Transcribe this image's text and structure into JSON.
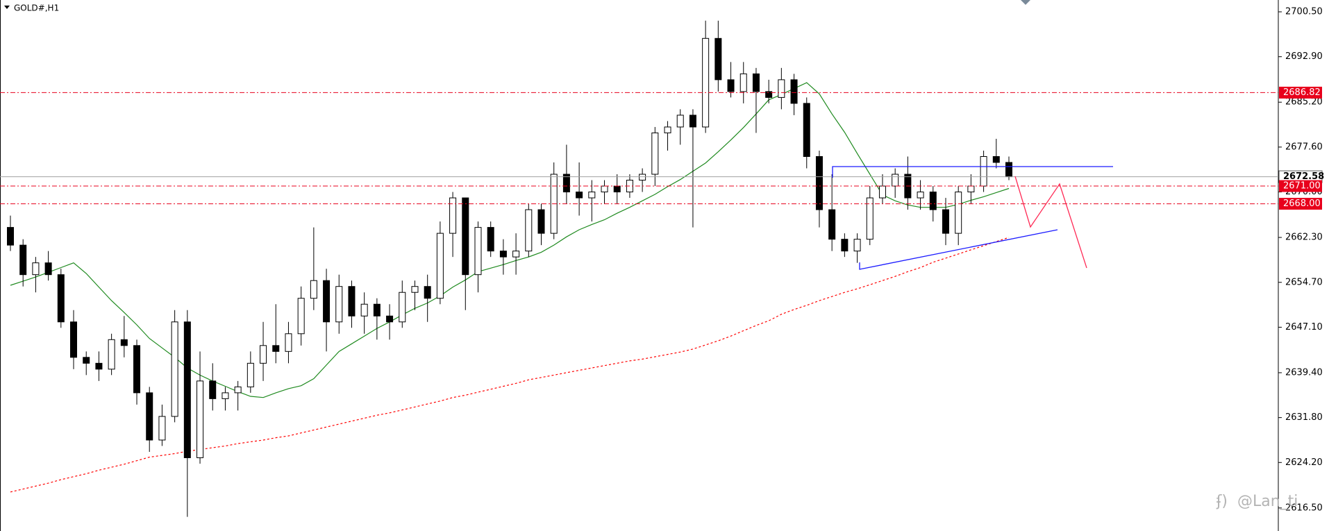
{
  "chart_data": {
    "type": "candlestick",
    "title": "GOLD#,H1",
    "ylim": [
      2612.6,
      2702.5
    ],
    "yticks": [
      {
        "value": 2700.5,
        "label": "2700.50"
      },
      {
        "value": 2692.9,
        "label": "2692.90"
      },
      {
        "value": 2685.2,
        "label": "2685.20"
      },
      {
        "value": 2677.6,
        "label": "2677.60"
      },
      {
        "value": 2670,
        "label": "2670.00"
      },
      {
        "value": 2662.3,
        "label": "2662.30"
      },
      {
        "value": 2654.7,
        "label": "2654.70"
      },
      {
        "value": 2647.1,
        "label": "2647.10"
      },
      {
        "value": 2639.4,
        "label": "2639.40"
      },
      {
        "value": 2631.8,
        "label": "2631.80"
      },
      {
        "value": 2624.2,
        "label": "2624.20"
      },
      {
        "value": 2616.5,
        "label": "2616.50"
      }
    ],
    "levels": [
      2686.82,
      {
        "value": 2671,
        "label": "2671.00"
      },
      {
        "value": 2668,
        "label": "2668.00"
      }
    ],
    "level_color": "#e8001c",
    "last": 2672.58,
    "open": [
      2664,
      2661,
      2656,
      2658,
      2656,
      2648,
      2642,
      2641,
      2640,
      2645,
      2644,
      2636,
      2628,
      2632,
      2648,
      2625,
      2638,
      2635,
      2636,
      2637,
      2641,
      2644,
      2643,
      2646,
      2652,
      2655,
      2648,
      2654,
      2649,
      2651,
      2649,
      2648,
      2653,
      2654,
      2652,
      2663,
      2669,
      2656,
      2664,
      2660,
      2659,
      2660,
      2667,
      2663,
      2673,
      2670,
      2669,
      2670,
      2671,
      2670,
      2672,
      2673,
      2680,
      2681,
      2683,
      2681,
      2696,
      2689,
      2687,
      2690,
      2687,
      2686,
      2689,
      2685,
      2676,
      2667,
      2662,
      2660,
      2662,
      2669,
      2671,
      2673,
      2669,
      2670,
      2667,
      2663,
      2670,
      2671,
      2676,
      2675
    ],
    "high": [
      2666,
      2662,
      2659,
      2660,
      2657,
      2650,
      2643,
      2643,
      2646,
      2649,
      2645,
      2637,
      2634,
      2650,
      2650,
      2643,
      2641,
      2637,
      2638,
      2643,
      2648,
      2651,
      2648,
      2654,
      2664,
      2657,
      2656,
      2655,
      2653,
      2652,
      2651,
      2655,
      2655,
      2656,
      2665,
      2670,
      2669,
      2665,
      2665,
      2662,
      2663,
      2668,
      2668,
      2675,
      2678,
      2675,
      2672,
      2672,
      2673,
      2673,
      2674,
      2681,
      2682,
      2684,
      2684,
      2699,
      2699,
      2692,
      2692,
      2691,
      2689,
      2691,
      2690,
      2686,
      2677,
      2673,
      2663,
      2663,
      2671,
      2673,
      2674,
      2676,
      2672,
      2671,
      2669,
      2671,
      2673,
      2677,
      2679,
      2676
    ],
    "low": [
      2660,
      2654,
      2653,
      2655,
      2647,
      2640,
      2639,
      2638,
      2639,
      2642,
      2634,
      2626,
      2627,
      2631,
      2615,
      2624,
      2633,
      2633,
      2633,
      2636,
      2638,
      2641,
      2641,
      2644,
      2650,
      2643,
      2646,
      2647,
      2646,
      2645,
      2645,
      2647,
      2650,
      2648,
      2651,
      2659,
      2650,
      2653,
      2659,
      2656,
      2656,
      2659,
      2661,
      2662,
      2668,
      2666,
      2665,
      2668,
      2668,
      2669,
      2670,
      2671,
      2677,
      2678,
      2664,
      2680,
      2687,
      2686,
      2685,
      2680,
      2685,
      2684,
      2683,
      2674,
      2664,
      2660,
      2659,
      2658,
      2661,
      2668,
      2669,
      2667,
      2667,
      2665,
      2661,
      2661,
      2668,
      2670,
      2674,
      2672
    ],
    "close": [
      2661,
      2656,
      2658,
      2656,
      2648,
      2642,
      2641,
      2640,
      2645,
      2644,
      2636,
      2628,
      2632,
      2648,
      2625,
      2638,
      2635,
      2636,
      2637,
      2641,
      2644,
      2643,
      2646,
      2652,
      2655,
      2648,
      2654,
      2649,
      2651,
      2649,
      2648,
      2653,
      2654,
      2652,
      2663,
      2669,
      2656,
      2664,
      2660,
      2659,
      2660,
      2667,
      2663,
      2673,
      2670,
      2669,
      2670,
      2671,
      2670,
      2672,
      2673,
      2680,
      2681,
      2683,
      2681,
      2696,
      2689,
      2687,
      2690,
      2687,
      2686,
      2689,
      2685,
      2676,
      2667,
      2662,
      2660,
      2662,
      2669,
      2671,
      2673,
      2669,
      2670,
      2667,
      2663,
      2670,
      2671,
      2676,
      2675,
      2672.58
    ],
    "up_color": "#ffffff",
    "down_color": "#000000",
    "series": [
      {
        "color": "#1f8a1f",
        "style": "solid",
        "values": [
          2654.2,
          2654.9,
          2655.6,
          2656.4,
          2657.2,
          2658,
          2656.2,
          2653.9,
          2651.6,
          2649.6,
          2647.5,
          2645.2,
          2643.6,
          2642,
          2640.2,
          2639,
          2638,
          2637.1,
          2636.2,
          2635.4,
          2635.2,
          2636,
          2636.7,
          2637.2,
          2638.4,
          2640.7,
          2643,
          2644.3,
          2645.6,
          2646.9,
          2648,
          2649.2,
          2650.3,
          2651.2,
          2652.4,
          2653.9,
          2655.1,
          2656.5,
          2657.1,
          2657.7,
          2658.4,
          2659,
          2659.8,
          2661,
          2662.4,
          2663.6,
          2664.5,
          2665.3,
          2666.4,
          2667.4,
          2668.5,
          2669.6,
          2670.9,
          2672.1,
          2673.5,
          2674.9,
          2676.8,
          2678.8,
          2680.9,
          2683.2,
          2685.6,
          2686.5,
          2687.5,
          2688.5,
          2686.6,
          2683.2,
          2680.1,
          2676.5,
          2673,
          2669.5,
          2668.5,
          2667.8,
          2667.4,
          2667.4,
          2667.4,
          2667.9,
          2668.6,
          2669.2,
          2669.9,
          2670.6
        ]
      },
      {
        "color": "#ff0000",
        "style": "dotted",
        "values": [
          2619.2,
          2619.7,
          2620.2,
          2620.7,
          2621.3,
          2621.8,
          2622.3,
          2622.9,
          2623.4,
          2623.9,
          2624.5,
          2625.1,
          2625.4,
          2625.7,
          2626.1,
          2626.4,
          2626.7,
          2627,
          2627.4,
          2627.7,
          2628,
          2628.4,
          2628.7,
          2629.2,
          2629.7,
          2630.2,
          2630.7,
          2631.2,
          2631.7,
          2632.2,
          2632.6,
          2633.1,
          2633.6,
          2634.1,
          2634.6,
          2635.2,
          2635.6,
          2636.1,
          2636.6,
          2637.1,
          2637.6,
          2638.2,
          2638.6,
          2639,
          2639.4,
          2639.8,
          2640.2,
          2640.6,
          2641,
          2641.4,
          2641.7,
          2642.1,
          2642.5,
          2642.9,
          2643.4,
          2644.1,
          2644.8,
          2645.6,
          2646.5,
          2647.4,
          2648.2,
          2649.3,
          2650.1,
          2650.8,
          2651.6,
          2652.3,
          2653,
          2653.6,
          2654.3,
          2655,
          2655.7,
          2656.5,
          2657.2,
          2658.1,
          2658.8,
          2659.5,
          2660.2,
          2660.9,
          2661.6,
          2662.3
        ]
      }
    ],
    "watermark": "@Lan_ti"
  }
}
